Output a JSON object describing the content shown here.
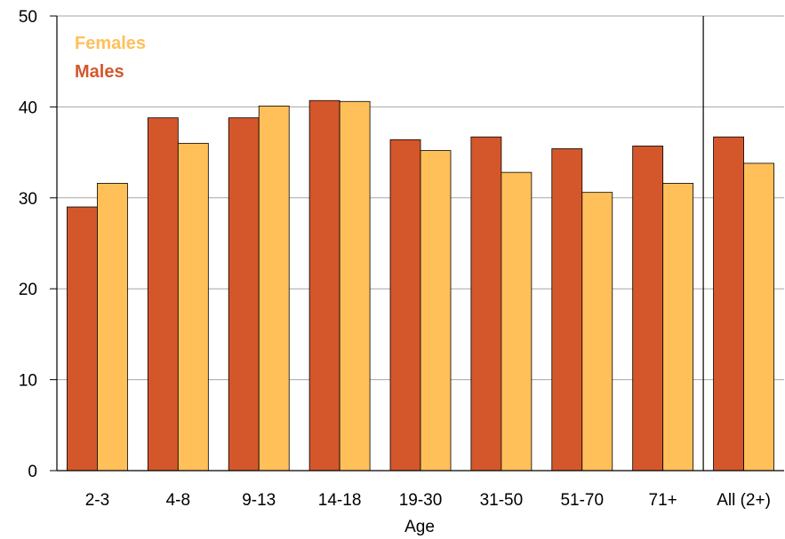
{
  "chart_data": {
    "type": "bar",
    "xlabel": "Age",
    "ylabel": "",
    "ylim": [
      0,
      50
    ],
    "yticks": [
      0,
      10,
      20,
      30,
      40,
      50
    ],
    "grid": true,
    "legend_position": "top-left",
    "categories": [
      "2-3",
      "4-8",
      "9-13",
      "14-18",
      "19-30",
      "31-50",
      "51-70",
      "71+",
      "All (2+)"
    ],
    "series": [
      {
        "name": "Males",
        "color": "#D4572B",
        "values": [
          29.0,
          38.8,
          38.8,
          40.7,
          36.4,
          36.7,
          35.4,
          35.7,
          36.7
        ]
      },
      {
        "name": "Females",
        "color": "#FFC05A",
        "values": [
          31.6,
          36.0,
          40.1,
          40.6,
          35.2,
          32.8,
          30.6,
          31.6,
          33.8
        ]
      }
    ],
    "legend_order": [
      "Females",
      "Males"
    ],
    "separator_before": "All (2+)"
  }
}
